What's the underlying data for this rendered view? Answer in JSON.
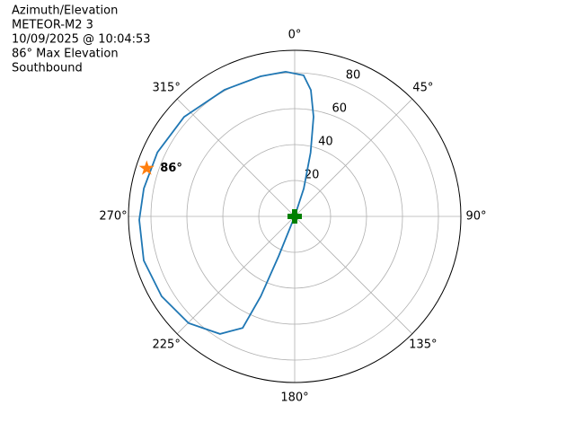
{
  "chart_data": {
    "type": "polar",
    "annotations": [
      "Azimuth/Elevation",
      "METEOR-M2 3",
      "10/09/2025 @ 10:04:53",
      "86° Max Elevation",
      "Southbound"
    ],
    "theta_direction": "clockwise",
    "theta_zero": "N",
    "thetaticks": [
      {
        "value": 0,
        "label": "0°"
      },
      {
        "value": 45,
        "label": "45°"
      },
      {
        "value": 90,
        "label": "90°"
      },
      {
        "value": 135,
        "label": "135°"
      },
      {
        "value": 180,
        "label": "180°"
      },
      {
        "value": 225,
        "label": "225°"
      },
      {
        "value": 270,
        "label": "270°"
      },
      {
        "value": 315,
        "label": "315°"
      }
    ],
    "rlim": [
      0,
      92.5
    ],
    "rticks": [
      20,
      40,
      60,
      80
    ],
    "grid": true,
    "series": [
      {
        "color": "#1f77b4",
        "theta": [
          0,
          18,
          14,
          10.7,
          7.3,
          3.6,
          356.4,
          346.3,
          331,
          312,
          295,
          280.5,
          268.7,
          253.7,
          239,
          224.8,
          212.4,
          205,
          203,
          202,
          0
        ],
        "values": [
          0,
          16.3,
          36.6,
          56.5,
          71,
          78.7,
          80.7,
          80.3,
          80.6,
          82.8,
          84.3,
          85.4,
          86.5,
          87.5,
          86.4,
          83.8,
          77.5,
          68.5,
          48.4,
          23.8,
          0
        ]
      }
    ],
    "markers": [
      {
        "theta": 288,
        "r": 86.6,
        "color": "#ff7f0e",
        "shape": "star",
        "label": "86°"
      },
      {
        "theta": 0,
        "r": 0,
        "color": "#008000",
        "shape": "plus"
      }
    ]
  }
}
